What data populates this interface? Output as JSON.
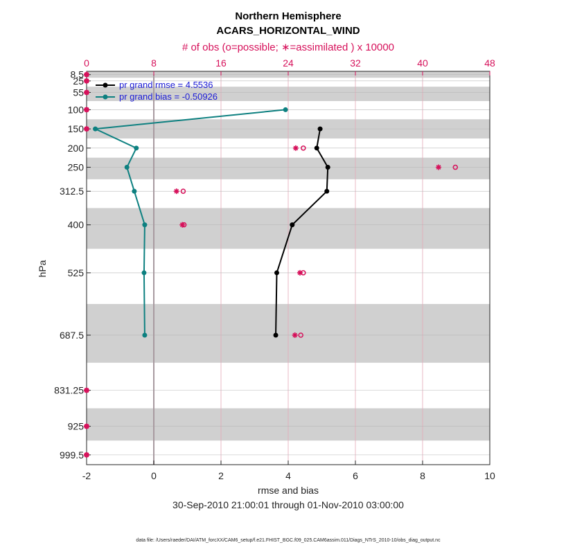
{
  "chart_data": {
    "type": "line",
    "title": [
      "Northern Hemisphere",
      "ACARS_HORIZONTAL_WIND"
    ],
    "top_axis_label": "# of obs (o=possible; ∗=assimilated ) x 10000",
    "xlabel": "rmse and bias",
    "ylabel": "hPa",
    "date_range": "30-Sep-2010 21:00:01 through 01-Nov-2010 03:00:00",
    "footer": "data file: /Users/raeder/DAI/ATM_forcXX/CAM6_setup/f.e21.FHIST_BGC.f09_025.CAM6assim.011/Diags_NTrS_2010-10/obs_diag_output.nc",
    "xlim": [
      -2,
      10
    ],
    "xticks": [
      -2,
      0,
      2,
      4,
      6,
      8,
      10
    ],
    "top_xlim": [
      0,
      48
    ],
    "top_xticks": [
      0,
      8,
      16,
      24,
      32,
      40,
      48
    ],
    "ylim": [
      1025,
      0
    ],
    "levels": [
      8.5,
      25,
      55,
      100,
      150,
      200,
      250,
      312.5,
      400,
      525,
      687.5,
      831.25,
      925,
      999.5
    ],
    "level_labels": [
      "8.5",
      "25",
      "55",
      "100",
      "150",
      "200",
      "250",
      "312.5",
      "400",
      "525",
      "687.5",
      "831.25",
      "925",
      "999.5"
    ],
    "level_bands": [
      [
        0,
        16.75
      ],
      [
        40,
        77.5
      ],
      [
        125,
        175
      ],
      [
        225,
        281.25
      ],
      [
        356.25,
        462.5
      ],
      [
        606.25,
        759.375
      ],
      [
        878.125,
        962.25
      ]
    ],
    "series": [
      {
        "name": "pr grand rmse",
        "legend": "pr grand rmse = 4.5536",
        "color": "#000000",
        "levels": [
          150,
          200,
          250,
          312.5,
          400,
          525,
          687.5
        ],
        "values": [
          4.95,
          4.85,
          5.18,
          5.15,
          4.12,
          3.66,
          3.63
        ]
      },
      {
        "name": "pr grand bias",
        "legend": "pr grand bias = -0.50926",
        "color": "#0d8080",
        "levels": [
          100,
          150,
          200,
          250,
          312.5,
          400,
          525,
          687.5
        ],
        "values": [
          3.92,
          -1.74,
          -0.52,
          -0.8,
          -0.58,
          -0.27,
          -0.29,
          -0.27
        ]
      }
    ],
    "obs_possible": {
      "levels": [
        8.5,
        25,
        55,
        100,
        150,
        200,
        250,
        312.5,
        400,
        525,
        687.5,
        831.25,
        925,
        999.5
      ],
      "values": [
        0,
        0,
        0,
        0,
        0,
        25.8,
        43.9,
        11.5,
        11.6,
        25.8,
        25.5,
        0,
        0,
        0
      ]
    },
    "obs_assimilated": {
      "levels": [
        8.5,
        25,
        55,
        100,
        150,
        200,
        250,
        312.5,
        400,
        525,
        687.5,
        831.25,
        925,
        999.5
      ],
      "values": [
        0,
        0,
        0,
        0,
        0,
        24.9,
        41.9,
        10.7,
        11.4,
        25.4,
        24.8,
        0,
        0,
        0
      ]
    }
  }
}
